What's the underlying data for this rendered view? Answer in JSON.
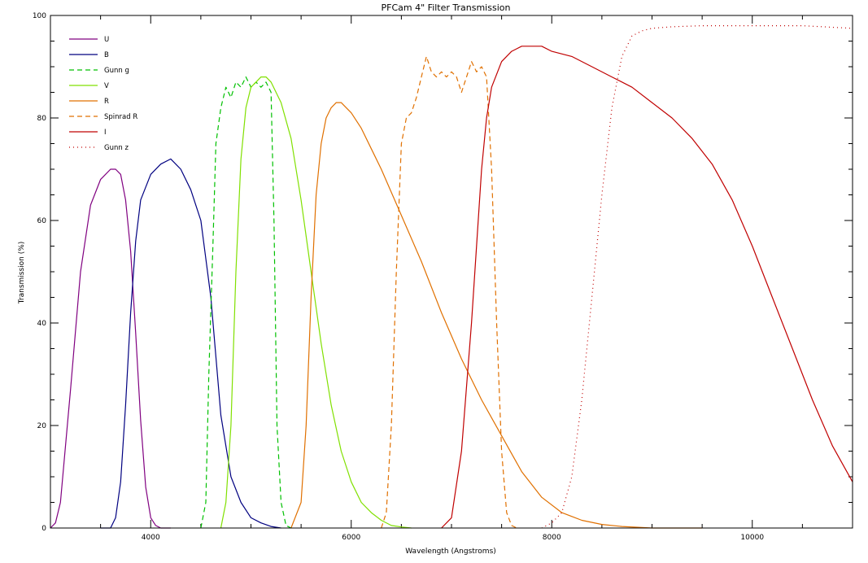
{
  "chart_data": {
    "type": "line",
    "title": "PFCam 4\" Filter Transmission",
    "xlabel": "Wavelength (Angstroms)",
    "ylabel": "Transmission (%)",
    "xlim": [
      3000,
      11000
    ],
    "ylim": [
      0,
      100
    ],
    "xticks": [
      4000,
      6000,
      8000,
      10000
    ],
    "yticks": [
      0,
      20,
      40,
      60,
      80,
      100
    ],
    "grid": false,
    "legend": "top-left",
    "series": [
      {
        "name": "U",
        "color": "#800080",
        "dash": "solid",
        "x": [
          3000,
          3050,
          3100,
          3200,
          3300,
          3400,
          3500,
          3600,
          3650,
          3700,
          3750,
          3800,
          3850,
          3900,
          3950,
          4000,
          4050,
          4100,
          4200
        ],
        "y": [
          0,
          1,
          5,
          27,
          50,
          63,
          68,
          70,
          70,
          69,
          64,
          54,
          38,
          21,
          8,
          2,
          0.5,
          0,
          0
        ]
      },
      {
        "name": "B",
        "color": "#000080",
        "dash": "solid",
        "x": [
          3500,
          3600,
          3650,
          3700,
          3750,
          3800,
          3850,
          3900,
          4000,
          4100,
          4200,
          4300,
          4400,
          4500,
          4600,
          4700,
          4800,
          4900,
          5000,
          5100,
          5200,
          5300
        ],
        "y": [
          0,
          0,
          2,
          9,
          24,
          42,
          56,
          64,
          69,
          71,
          72,
          70,
          66,
          60,
          45,
          22,
          10,
          5,
          2,
          1,
          0.3,
          0
        ]
      },
      {
        "name": "Gunn g",
        "color": "#00c000",
        "dash": "dashed",
        "x": [
          4500,
          4550,
          4580,
          4620,
          4650,
          4700,
          4750,
          4800,
          4850,
          4900,
          4950,
          5000,
          5050,
          5100,
          5150,
          5200,
          5230,
          5260,
          5300,
          5350,
          5400
        ],
        "y": [
          0,
          5,
          30,
          55,
          75,
          82,
          86,
          84,
          87,
          86,
          88,
          86,
          87,
          86,
          87,
          85,
          60,
          20,
          5,
          0.5,
          0
        ]
      },
      {
        "name": "V",
        "color": "#80e000",
        "dash": "solid",
        "x": [
          4700,
          4750,
          4800,
          4850,
          4900,
          4950,
          5000,
          5050,
          5100,
          5150,
          5200,
          5300,
          5400,
          5500,
          5600,
          5700,
          5800,
          5900,
          6000,
          6100,
          6200,
          6300,
          6400,
          6500,
          6600
        ],
        "y": [
          0,
          5,
          20,
          50,
          72,
          82,
          86,
          87,
          88,
          88,
          87,
          83,
          76,
          64,
          50,
          36,
          24,
          15,
          9,
          5,
          3,
          1.5,
          0.5,
          0.2,
          0
        ]
      },
      {
        "name": "R",
        "color": "#e07000",
        "dash": "solid",
        "x": [
          5400,
          5500,
          5550,
          5600,
          5650,
          5700,
          5750,
          5800,
          5850,
          5900,
          5950,
          6000,
          6100,
          6200,
          6300,
          6500,
          6700,
          6900,
          7100,
          7300,
          7500,
          7700,
          7900,
          8100,
          8300,
          8500,
          8700,
          9000,
          9500
        ],
        "y": [
          0,
          5,
          20,
          45,
          65,
          75,
          80,
          82,
          83,
          83,
          82,
          81,
          78,
          74,
          70,
          61,
          52,
          42,
          33,
          25,
          18,
          11,
          6,
          3,
          1.5,
          0.7,
          0.3,
          0,
          0
        ]
      },
      {
        "name": "Spinrad R",
        "color": "#e07000",
        "dash": "dashed",
        "x": [
          6300,
          6350,
          6400,
          6450,
          6500,
          6550,
          6600,
          6650,
          6700,
          6750,
          6800,
          6850,
          6900,
          6950,
          7000,
          7050,
          7100,
          7150,
          7200,
          7250,
          7300,
          7350,
          7400,
          7450,
          7500,
          7550,
          7600,
          7650
        ],
        "y": [
          0,
          3,
          20,
          50,
          75,
          80,
          81,
          84,
          88,
          92,
          89,
          88,
          89,
          88,
          89,
          88,
          85,
          88,
          91,
          89,
          90,
          88,
          70,
          40,
          15,
          3,
          0.5,
          0
        ]
      },
      {
        "name": "I",
        "color": "#c00000",
        "dash": "solid",
        "x": [
          6900,
          7000,
          7100,
          7200,
          7300,
          7350,
          7400,
          7500,
          7600,
          7700,
          7800,
          7900,
          8000,
          8200,
          8400,
          8600,
          8800,
          9000,
          9200,
          9400,
          9600,
          9800,
          10000,
          10200,
          10400,
          10600,
          10800,
          11000
        ],
        "y": [
          0,
          2,
          15,
          40,
          70,
          80,
          86,
          91,
          93,
          94,
          94,
          94,
          93,
          92,
          90,
          88,
          86,
          83,
          80,
          76,
          71,
          64,
          55,
          45,
          35,
          25,
          16,
          9
        ]
      },
      {
        "name": "Gunn z",
        "color": "#c00000",
        "dash": "dotted",
        "x": [
          7900,
          8000,
          8100,
          8200,
          8300,
          8400,
          8500,
          8600,
          8700,
          8800,
          8900,
          9000,
          9200,
          9500,
          10000,
          10500,
          11000
        ],
        "y": [
          0,
          1,
          3,
          10,
          25,
          45,
          65,
          82,
          92,
          96,
          97,
          97.5,
          97.8,
          98,
          98,
          98,
          97.5
        ]
      }
    ]
  }
}
